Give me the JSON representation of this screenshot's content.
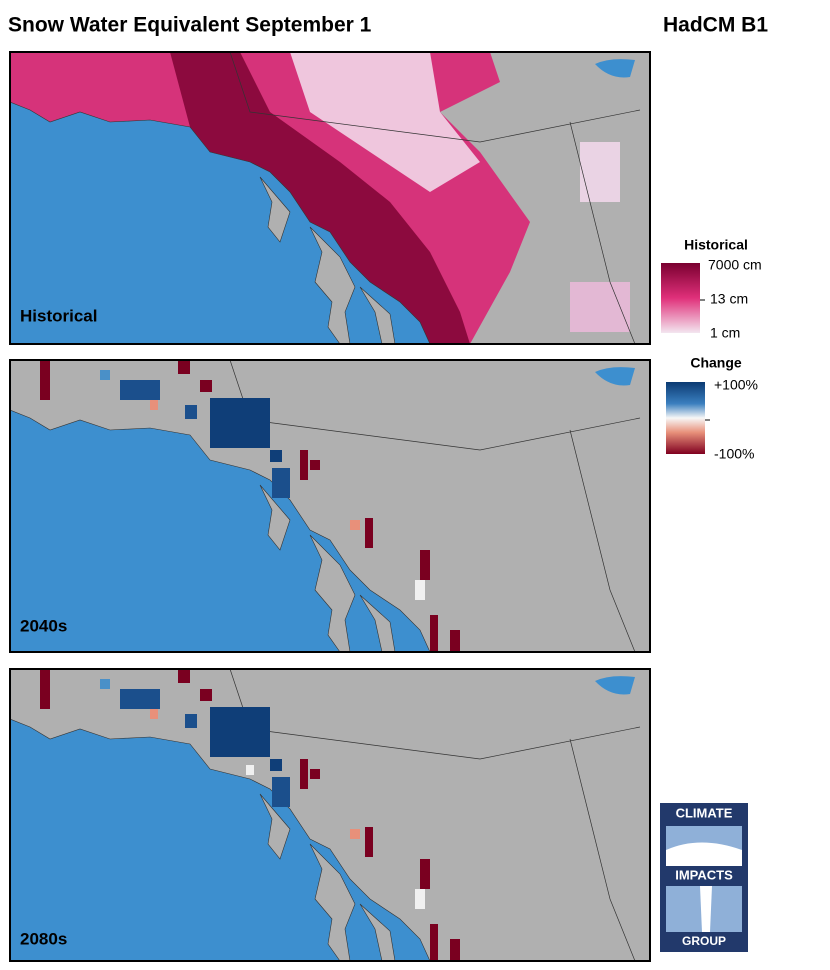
{
  "header": {
    "title": "Snow Water Equivalent September 1",
    "model": "HadCM B1"
  },
  "panels": [
    {
      "label": "Historical"
    },
    {
      "label": "2040s"
    },
    {
      "label": "2080s"
    }
  ],
  "legends": [
    {
      "title": "Historical",
      "labels": [
        "7000 cm",
        "13 cm",
        "1 cm"
      ]
    },
    {
      "title": "Change",
      "labels": [
        "+100%",
        "-100%"
      ]
    }
  ],
  "logo": {
    "lines": [
      "CLIMATE",
      "IMPACTS",
      "GROUP"
    ]
  }
}
